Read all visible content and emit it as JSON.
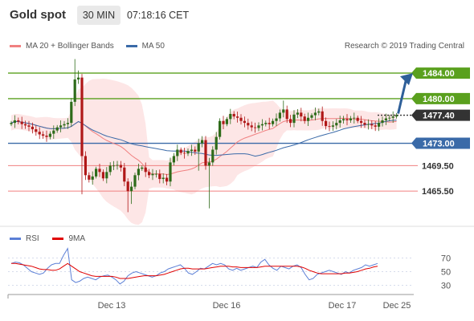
{
  "header": {
    "title": "Gold spot",
    "timeframe": "30 MIN",
    "time": "07:18:16 CET"
  },
  "legend": {
    "items": [
      {
        "label": "MA 20 + Bollinger Bands",
        "color": "#f08080"
      },
      {
        "label": "MA 50",
        "color": "#3a6aa8"
      }
    ],
    "credit": "Research © 2019 Trading Central"
  },
  "rsi_legend": {
    "items": [
      {
        "label": "RSI",
        "color": "#5b7fd6"
      },
      {
        "label": "9MA",
        "color": "#e00000"
      }
    ]
  },
  "colors": {
    "resistance": "#5aa01e",
    "pivot": "#3a6aa8",
    "support": "#f08080",
    "current": "#333333",
    "arrow": "#2e5f99",
    "band": "#fde3e3"
  },
  "chart_data": [
    {
      "type": "candlestick",
      "title": "Gold spot",
      "ylim": [
        1462,
        1486
      ],
      "x_ticks": [
        "Dec 13",
        "Dec 16",
        "Dec 17",
        "Dec 25"
      ],
      "levels": [
        {
          "label": "1484.00",
          "value": 1484.0,
          "kind": "resistance"
        },
        {
          "label": "1480.00",
          "value": 1480.0,
          "kind": "resistance"
        },
        {
          "label": "1477.40",
          "value": 1477.4,
          "kind": "current"
        },
        {
          "label": "1473.00",
          "value": 1473.0,
          "kind": "pivot"
        },
        {
          "label": "1469.50",
          "value": 1469.5,
          "kind": "support"
        },
        {
          "label": "1465.50",
          "value": 1465.5,
          "kind": "support"
        }
      ],
      "close": [
        1476.2,
        1476.6,
        1476.4,
        1476.0,
        1475.8,
        1475.6,
        1475.2,
        1474.8,
        1474.4,
        1474.2,
        1474.0,
        1474.5,
        1475.0,
        1475.5,
        1475.8,
        1476.0,
        1476.2,
        1479.5,
        1483.0,
        1483.3,
        1471.0,
        1468.0,
        1467.3,
        1467.8,
        1469.0,
        1468.5,
        1467.5,
        1468.5,
        1469.5,
        1469.5,
        1469.6,
        1469.2,
        1467.0,
        1465.5,
        1466.2,
        1468.0,
        1469.0,
        1469.2,
        1468.5,
        1468.0,
        1468.2,
        1468.2,
        1467.4,
        1467.6,
        1467.0,
        1470.0,
        1471.0,
        1472.0,
        1471.5,
        1471.4,
        1471.8,
        1472.0,
        1471.7,
        1473.0,
        1473.5,
        1469.5,
        1470.0,
        1472.0,
        1474.0,
        1476.5,
        1476.0,
        1476.8,
        1477.6,
        1477.2,
        1477.0,
        1476.5,
        1476.2,
        1475.8,
        1475.5,
        1475.4,
        1475.8,
        1476.0,
        1476.2,
        1476.0,
        1476.5,
        1476.9,
        1477.8,
        1478.3,
        1476.8,
        1476.2,
        1477.5,
        1477.8,
        1477.2,
        1476.5,
        1477.0,
        1477.4,
        1477.8,
        1478.0,
        1476.5,
        1475.7,
        1475.6,
        1475.8,
        1476.2,
        1476.6,
        1476.8,
        1476.6,
        1476.9,
        1477.0,
        1476.5,
        1476.2,
        1475.9,
        1476.0,
        1475.8,
        1475.6,
        1476.2,
        1476.6,
        1476.9,
        1477.0,
        1477.2,
        1477.4
      ]
    },
    {
      "type": "line",
      "title": "RSI",
      "ylim": [
        18,
        88
      ],
      "y_ticks": [
        70,
        50,
        30
      ],
      "series": [
        {
          "name": "RSI",
          "values": [
            62,
            64,
            63,
            60,
            55,
            50,
            48,
            46,
            48,
            55,
            60,
            62,
            62,
            74,
            84,
            38,
            34,
            36,
            40,
            42,
            40,
            38,
            42,
            44,
            45,
            42,
            38,
            32,
            36,
            44,
            48,
            50,
            48,
            46,
            44,
            42,
            44,
            48,
            50,
            54,
            56,
            58,
            60,
            55,
            48,
            46,
            50,
            55,
            54,
            58,
            62,
            60,
            62,
            60,
            54,
            52,
            55,
            52,
            54,
            56,
            58,
            56,
            64,
            68,
            60,
            55,
            52,
            58,
            56,
            54,
            58,
            60,
            56,
            46,
            38,
            40,
            46,
            48,
            50,
            52,
            50,
            48,
            46,
            50,
            48,
            52,
            54,
            56,
            60,
            58,
            60,
            62
          ]
        },
        {
          "name": "9MA",
          "values": [
            62,
            62,
            61,
            60,
            59,
            58,
            56,
            54,
            53,
            53,
            52,
            52,
            54,
            58,
            62,
            58,
            54,
            50,
            48,
            46,
            44,
            43,
            43,
            43,
            43,
            43,
            42,
            40,
            40,
            40,
            41,
            42,
            43,
            44,
            44,
            44,
            44,
            45,
            46,
            48,
            50,
            52,
            54,
            55,
            55,
            54,
            54,
            54,
            54,
            55,
            56,
            57,
            58,
            58,
            58,
            57,
            57,
            56,
            56,
            56,
            56,
            56,
            57,
            58,
            58,
            58,
            58,
            58,
            58,
            58,
            58,
            58,
            57,
            55,
            52,
            50,
            48,
            47,
            47,
            47,
            47,
            47,
            47,
            48,
            48,
            49,
            50,
            52,
            54,
            55,
            57,
            58
          ]
        }
      ]
    }
  ]
}
